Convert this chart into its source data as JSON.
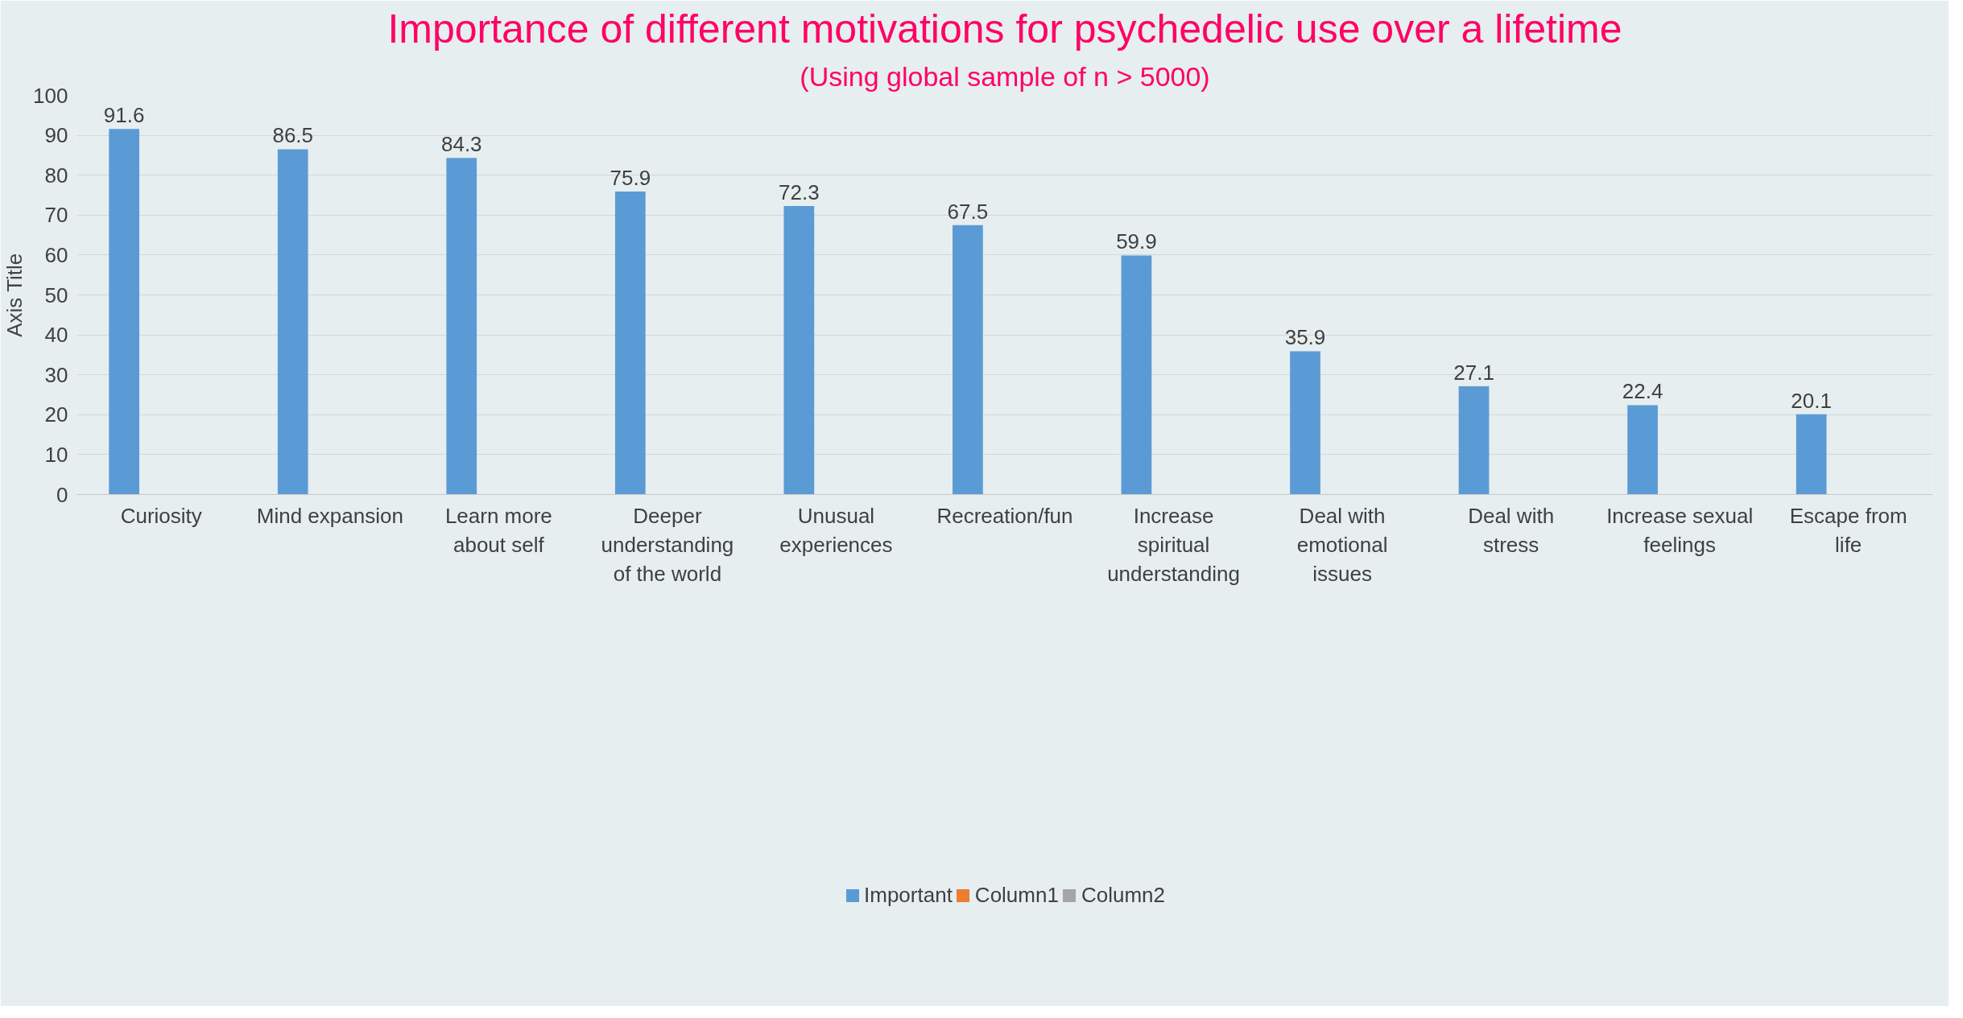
{
  "chart_data": {
    "type": "bar",
    "title": "Importance of different motivations for psychedelic use over a lifetime",
    "subtitle": "(Using global sample of n > 5000)",
    "ylabel": "Axis Title",
    "categories": [
      "Curiosity",
      "Mind expansion",
      "Learn more about self",
      "Deeper understanding of the world",
      "Unusual experiences",
      "Recreation/fun",
      "Increase spiritual understanding",
      "Deal with emotional issues",
      "Deal with stress",
      "Increase sexual feelings",
      "Escape from life"
    ],
    "series": [
      {
        "name": "Important",
        "color": "#5b9bd5",
        "values": [
          91.6,
          86.5,
          84.3,
          75.9,
          72.3,
          67.5,
          59.9,
          35.9,
          27.1,
          22.4,
          20.1
        ]
      },
      {
        "name": "Column1",
        "color": "#ed7d31",
        "values": [
          null,
          null,
          null,
          null,
          null,
          null,
          null,
          null,
          null,
          null,
          null
        ]
      },
      {
        "name": "Column2",
        "color": "#a5a5a5",
        "values": [
          null,
          null,
          null,
          null,
          null,
          null,
          null,
          null,
          null,
          null,
          null
        ]
      }
    ],
    "ylim": [
      0,
      100
    ],
    "yticks": [
      0,
      10,
      20,
      30,
      40,
      50,
      60,
      70,
      80,
      90,
      100
    ],
    "grid": "y",
    "legend": "bottom",
    "data_labels": true
  }
}
